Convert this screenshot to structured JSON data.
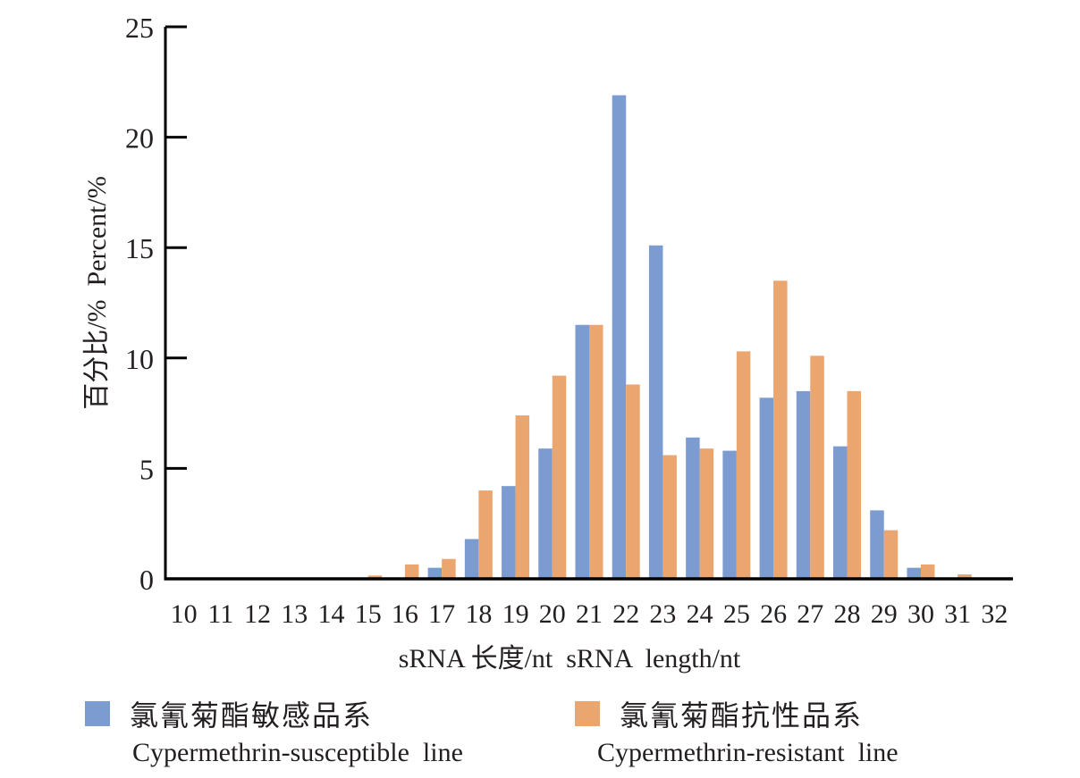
{
  "chart_data": {
    "type": "bar",
    "categories": [
      "10",
      "11",
      "12",
      "13",
      "14",
      "15",
      "16",
      "17",
      "18",
      "19",
      "20",
      "21",
      "22",
      "23",
      "24",
      "25",
      "26",
      "27",
      "28",
      "29",
      "30",
      "31",
      "32"
    ],
    "series": [
      {
        "name": "氯氰菊酯敏感品系 Cypermethrin-susceptible line",
        "color": "#7b9bd1",
        "values": [
          0,
          0,
          0,
          0,
          0,
          0,
          0,
          0.5,
          1.8,
          4.2,
          5.9,
          11.5,
          21.9,
          15.1,
          6.4,
          5.8,
          8.2,
          8.5,
          6.0,
          3.1,
          0.5,
          0,
          0
        ]
      },
      {
        "name": "氯氰菊酯抗性品系 Cypermethrin-resistant line",
        "color": "#eba56f",
        "values": [
          0,
          0,
          0,
          0,
          0,
          0.15,
          0.65,
          0.9,
          4.0,
          7.4,
          9.2,
          11.5,
          8.8,
          5.6,
          5.9,
          10.3,
          13.5,
          10.1,
          8.5,
          2.2,
          0.65,
          0.2,
          0
        ]
      }
    ],
    "xlabel": "sRNA 长度/nt  sRNA  length/nt",
    "ylabel": "百分比/%  Percent/%",
    "ylim": [
      0,
      25
    ],
    "yticks": [
      "0",
      "5",
      "10",
      "15",
      "20",
      "25"
    ],
    "grid": false,
    "legend_position": "bottom"
  },
  "legend": [
    {
      "zh": "氯氰菊酯敏感品系",
      "en": "Cypermethrin-susceptible  line",
      "color": "#7b9bd1"
    },
    {
      "zh": "氯氰菊酯抗性品系",
      "en": "Cypermethrin-resistant  line",
      "color": "#eba56f"
    }
  ]
}
